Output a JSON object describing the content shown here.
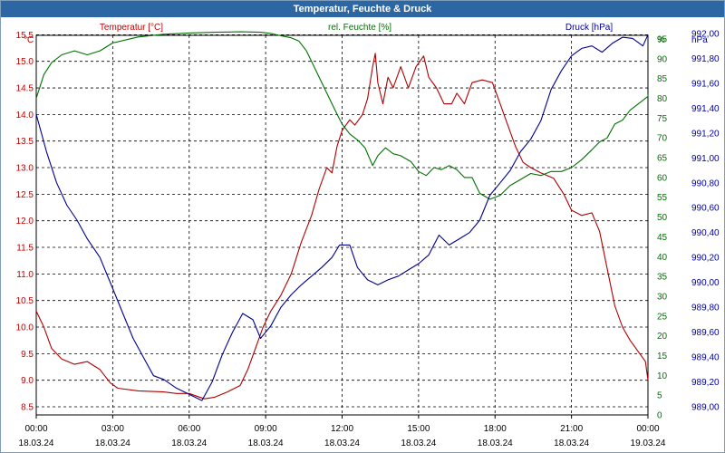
{
  "window": {
    "title": "Temperatur, Feuchte & Druck"
  },
  "chart_data": {
    "type": "line",
    "title": "Temperatur, Feuchte & Druck",
    "x_ticks": [
      {
        "h": 0,
        "time": "00:00",
        "date": "18.03.24"
      },
      {
        "h": 3,
        "time": "03:00",
        "date": "18.03.24"
      },
      {
        "h": 6,
        "time": "06:00",
        "date": "18.03.24"
      },
      {
        "h": 9,
        "time": "09:00",
        "date": "18.03.24"
      },
      {
        "h": 12,
        "time": "12:00",
        "date": "18.03.24"
      },
      {
        "h": 15,
        "time": "15:00",
        "date": "18.03.24"
      },
      {
        "h": 18,
        "time": "18:00",
        "date": "18.03.24"
      },
      {
        "h": 21,
        "time": "21:00",
        "date": "18.03.24"
      },
      {
        "h": 24,
        "time": "00:00",
        "date": "19.03.24"
      }
    ],
    "xlim": [
      0,
      24
    ],
    "grid": true,
    "axes": {
      "temperature": {
        "title": "Temperatur [°C]",
        "unit": "°C",
        "color": "#c00000",
        "range": [
          8.5,
          15.0
        ],
        "ticks": [
          "8.5",
          "9.0",
          "9.5",
          "10.0",
          "10.5",
          "11.0",
          "11.5",
          "12.0",
          "12.5",
          "13.0",
          "13.5",
          "14.0",
          "14.5",
          "15.0",
          "15.5"
        ]
      },
      "humidity": {
        "title": "rel. Feuchte [%]",
        "unit": "%",
        "color": "#007000",
        "ticks": [
          "0",
          "5",
          "10",
          "15",
          "20",
          "25",
          "30",
          "35",
          "40",
          "45",
          "50",
          "55",
          "60",
          "65",
          "70",
          "75",
          "80",
          "85",
          "90",
          "95"
        ]
      },
      "pressure": {
        "title": "Druck [hPa]",
        "unit": "hPa",
        "color": "#0000a0",
        "ticks": [
          "989,00",
          "989,20",
          "989,40",
          "989,60",
          "989,80",
          "990,00",
          "990,20",
          "990,40",
          "990,60",
          "990,80",
          "991,00",
          "991,20",
          "991,40",
          "991,60",
          "991,80",
          "992,00"
        ]
      }
    },
    "series": [
      {
        "name": "Temperatur [°C]",
        "axis": "temperature",
        "color": "#b00000",
        "points": [
          [
            0,
            10.3
          ],
          [
            0.3,
            10.0
          ],
          [
            0.6,
            9.6
          ],
          [
            1,
            9.4
          ],
          [
            1.5,
            9.3
          ],
          [
            2,
            9.35
          ],
          [
            2.5,
            9.2
          ],
          [
            2.9,
            8.95
          ],
          [
            3.2,
            8.85
          ],
          [
            4,
            8.8
          ],
          [
            5,
            8.78
          ],
          [
            5.5,
            8.75
          ],
          [
            6,
            8.75
          ],
          [
            6.3,
            8.7
          ],
          [
            6.6,
            8.65
          ],
          [
            7,
            8.68
          ],
          [
            7.5,
            8.78
          ],
          [
            8,
            8.9
          ],
          [
            8.3,
            9.2
          ],
          [
            8.6,
            9.6
          ],
          [
            8.9,
            10.0
          ],
          [
            9.2,
            10.3
          ],
          [
            9.6,
            10.6
          ],
          [
            10,
            11.0
          ],
          [
            10.4,
            11.6
          ],
          [
            10.8,
            12.1
          ],
          [
            11.1,
            12.6
          ],
          [
            11.4,
            13.0
          ],
          [
            11.6,
            12.9
          ],
          [
            11.8,
            13.4
          ],
          [
            12.0,
            13.7
          ],
          [
            12.3,
            13.9
          ],
          [
            12.5,
            13.8
          ],
          [
            12.8,
            14.0
          ],
          [
            13.0,
            14.3
          ],
          [
            13.2,
            14.9
          ],
          [
            13.3,
            15.15
          ],
          [
            13.4,
            14.6
          ],
          [
            13.6,
            14.2
          ],
          [
            13.8,
            14.7
          ],
          [
            14.0,
            14.5
          ],
          [
            14.3,
            14.9
          ],
          [
            14.6,
            14.5
          ],
          [
            14.9,
            14.9
          ],
          [
            15.2,
            15.1
          ],
          [
            15.4,
            14.7
          ],
          [
            15.7,
            14.5
          ],
          [
            16.0,
            14.2
          ],
          [
            16.3,
            14.2
          ],
          [
            16.5,
            14.4
          ],
          [
            16.8,
            14.2
          ],
          [
            17.1,
            14.6
          ],
          [
            17.5,
            14.65
          ],
          [
            17.9,
            14.6
          ],
          [
            18.2,
            14.2
          ],
          [
            18.5,
            13.8
          ],
          [
            18.8,
            13.4
          ],
          [
            19.1,
            13.1
          ],
          [
            19.4,
            13.0
          ],
          [
            19.8,
            12.9
          ],
          [
            20.3,
            12.8
          ],
          [
            20.7,
            12.5
          ],
          [
            21.0,
            12.2
          ],
          [
            21.4,
            12.1
          ],
          [
            21.8,
            12.15
          ],
          [
            22.1,
            11.8
          ],
          [
            22.4,
            11.1
          ],
          [
            22.7,
            10.4
          ],
          [
            23.0,
            10.0
          ],
          [
            23.3,
            9.75
          ],
          [
            23.6,
            9.55
          ],
          [
            23.9,
            9.35
          ],
          [
            24.2,
            9.0
          ]
        ]
      },
      {
        "name": "rel. Feuchte [%]",
        "axis": "humidity",
        "color": "#007000",
        "points": [
          [
            0,
            80
          ],
          [
            0.3,
            86
          ],
          [
            0.6,
            89
          ],
          [
            1,
            91
          ],
          [
            1.5,
            92
          ],
          [
            2,
            91
          ],
          [
            2.5,
            92
          ],
          [
            3,
            94
          ],
          [
            4,
            95.5
          ],
          [
            5,
            96.2
          ],
          [
            6,
            96.5
          ],
          [
            7,
            96.7
          ],
          [
            8,
            96.8
          ],
          [
            8.8,
            96.7
          ],
          [
            9.2,
            96.4
          ],
          [
            9.6,
            95.8
          ],
          [
            10,
            95.3
          ],
          [
            10.3,
            94.5
          ],
          [
            10.6,
            92.0
          ],
          [
            10.9,
            88.0
          ],
          [
            11.2,
            84.0
          ],
          [
            11.5,
            80.0
          ],
          [
            11.8,
            76.0
          ],
          [
            12.0,
            73.5
          ],
          [
            12.3,
            71.0
          ],
          [
            12.6,
            69.5
          ],
          [
            12.9,
            67.5
          ],
          [
            13.2,
            63.0
          ],
          [
            13.4,
            65.5
          ],
          [
            13.7,
            67.5
          ],
          [
            14.0,
            66.0
          ],
          [
            14.3,
            65.5
          ],
          [
            14.7,
            64.0
          ],
          [
            15.0,
            61.5
          ],
          [
            15.3,
            60.5
          ],
          [
            15.6,
            62.5
          ],
          [
            15.9,
            62.0
          ],
          [
            16.2,
            63.0
          ],
          [
            16.5,
            62.0
          ],
          [
            16.8,
            60.0
          ],
          [
            17.1,
            60.0
          ],
          [
            17.4,
            56.0
          ],
          [
            17.8,
            54.5
          ],
          [
            18.2,
            55.5
          ],
          [
            18.6,
            58.0
          ],
          [
            19.0,
            59.5
          ],
          [
            19.4,
            61.0
          ],
          [
            19.8,
            60.5
          ],
          [
            20.2,
            61.5
          ],
          [
            20.6,
            61.5
          ],
          [
            21.0,
            62.5
          ],
          [
            21.4,
            64.5
          ],
          [
            21.8,
            67.0
          ],
          [
            22.1,
            69.0
          ],
          [
            22.4,
            70.0
          ],
          [
            22.7,
            73.5
          ],
          [
            23.0,
            74.5
          ],
          [
            23.3,
            77.0
          ],
          [
            23.6,
            78.5
          ],
          [
            24.0,
            80.5
          ],
          [
            24.2,
            81.0
          ]
        ]
      },
      {
        "name": "Druck [hPa]",
        "axis": "pressure",
        "color": "#000090",
        "points": [
          [
            0,
            991.35
          ],
          [
            0.4,
            991.05
          ],
          [
            0.8,
            990.8
          ],
          [
            1.2,
            990.62
          ],
          [
            1.6,
            990.5
          ],
          [
            2.0,
            990.35
          ],
          [
            2.5,
            990.2
          ],
          [
            3.0,
            989.95
          ],
          [
            3.4,
            989.75
          ],
          [
            3.8,
            989.55
          ],
          [
            4.2,
            989.4
          ],
          [
            4.6,
            989.25
          ],
          [
            5.0,
            989.22
          ],
          [
            5.5,
            989.15
          ],
          [
            6.0,
            989.1
          ],
          [
            6.5,
            989.05
          ],
          [
            6.9,
            989.2
          ],
          [
            7.3,
            989.42
          ],
          [
            7.7,
            989.6
          ],
          [
            8.1,
            989.75
          ],
          [
            8.5,
            989.7
          ],
          [
            8.8,
            989.55
          ],
          [
            9.2,
            989.65
          ],
          [
            9.6,
            989.8
          ],
          [
            10.0,
            989.9
          ],
          [
            10.4,
            989.98
          ],
          [
            10.8,
            990.05
          ],
          [
            11.2,
            990.12
          ],
          [
            11.6,
            990.2
          ],
          [
            11.9,
            990.3
          ],
          [
            12.3,
            990.3
          ],
          [
            12.6,
            990.12
          ],
          [
            13.0,
            990.02
          ],
          [
            13.4,
            989.98
          ],
          [
            13.8,
            990.02
          ],
          [
            14.2,
            990.05
          ],
          [
            14.6,
            990.1
          ],
          [
            15.0,
            990.15
          ],
          [
            15.4,
            990.22
          ],
          [
            15.8,
            990.38
          ],
          [
            16.2,
            990.3
          ],
          [
            16.6,
            990.35
          ],
          [
            17.0,
            990.4
          ],
          [
            17.4,
            990.5
          ],
          [
            17.8,
            990.7
          ],
          [
            18.2,
            990.8
          ],
          [
            18.6,
            990.9
          ],
          [
            19.0,
            991.05
          ],
          [
            19.4,
            991.15
          ],
          [
            19.8,
            991.3
          ],
          [
            20.2,
            991.55
          ],
          [
            20.6,
            991.7
          ],
          [
            21.0,
            991.82
          ],
          [
            21.4,
            991.88
          ],
          [
            21.8,
            991.9
          ],
          [
            22.2,
            991.85
          ],
          [
            22.6,
            991.92
          ],
          [
            23.0,
            991.97
          ],
          [
            23.4,
            991.96
          ],
          [
            23.8,
            991.9
          ],
          [
            24.2,
            991.99
          ]
        ]
      }
    ]
  }
}
